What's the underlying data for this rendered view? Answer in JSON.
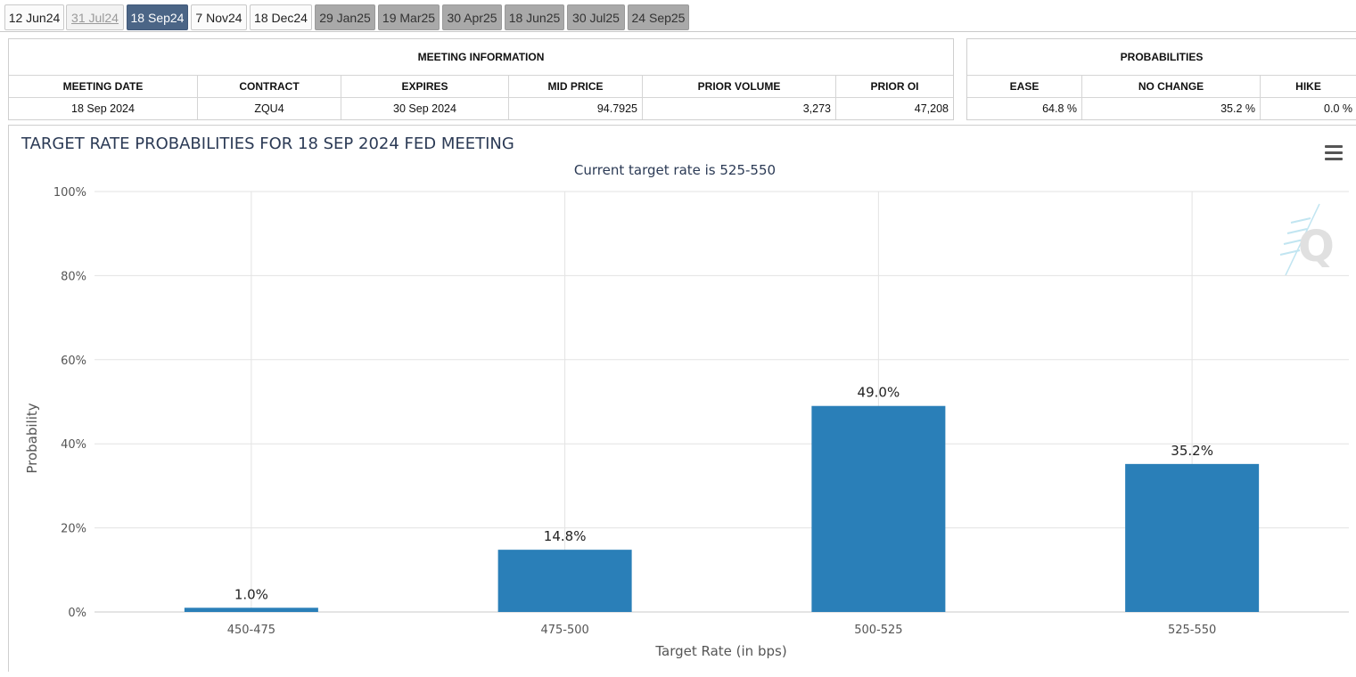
{
  "tabs": [
    {
      "label": "12 Jun24",
      "state": "normal"
    },
    {
      "label": "31 Jul24",
      "state": "disabled"
    },
    {
      "label": "18 Sep24",
      "state": "active"
    },
    {
      "label": "7 Nov24",
      "state": "normal"
    },
    {
      "label": "18 Dec24",
      "state": "normal"
    },
    {
      "label": "29 Jan25",
      "state": "future"
    },
    {
      "label": "19 Mar25",
      "state": "future"
    },
    {
      "label": "30 Apr25",
      "state": "future"
    },
    {
      "label": "18 Jun25",
      "state": "future"
    },
    {
      "label": "30 Jul25",
      "state": "future"
    },
    {
      "label": "24 Sep25",
      "state": "future"
    }
  ],
  "meeting_info": {
    "title": "MEETING INFORMATION",
    "headers": {
      "meeting_date": "MEETING DATE",
      "contract": "CONTRACT",
      "expires": "EXPIRES",
      "mid_price": "MID PRICE",
      "prior_volume": "PRIOR VOLUME",
      "prior_oi": "PRIOR OI"
    },
    "values": {
      "meeting_date": "18 Sep 2024",
      "contract": "ZQU4",
      "expires": "30 Sep 2024",
      "mid_price": "94.7925",
      "prior_volume": "3,273",
      "prior_oi": "47,208"
    }
  },
  "probabilities": {
    "title": "PROBABILITIES",
    "headers": {
      "ease": "EASE",
      "no_change": "NO CHANGE",
      "hike": "HIKE"
    },
    "values": {
      "ease": "64.8 %",
      "no_change": "35.2 %",
      "hike": "0.0 %"
    }
  },
  "chart_data": {
    "type": "bar",
    "title": "TARGET RATE PROBABILITIES FOR 18 SEP 2024 FED MEETING",
    "subtitle": "Current target rate is 525-550",
    "xlabel": "Target Rate (in bps)",
    "ylabel": "Probability",
    "categories": [
      "450-475",
      "475-500",
      "500-525",
      "525-550"
    ],
    "values": [
      1.0,
      14.8,
      49.0,
      35.2
    ],
    "data_labels": [
      "1.0%",
      "14.8%",
      "49.0%",
      "35.2%"
    ],
    "yticks": [
      "0%",
      "20%",
      "40%",
      "60%",
      "80%",
      "100%"
    ],
    "ylim": [
      0,
      100
    ],
    "grid": true,
    "bar_color": "#2a7fb8"
  },
  "colors": {
    "active_tab": "#4b6586",
    "future_tab": "#a9a9a9",
    "bar": "#2a7fb8",
    "title_text": "#2b3a55"
  },
  "icons": {
    "menu": "hamburger-menu-icon",
    "watermark": "q-logo-watermark"
  }
}
